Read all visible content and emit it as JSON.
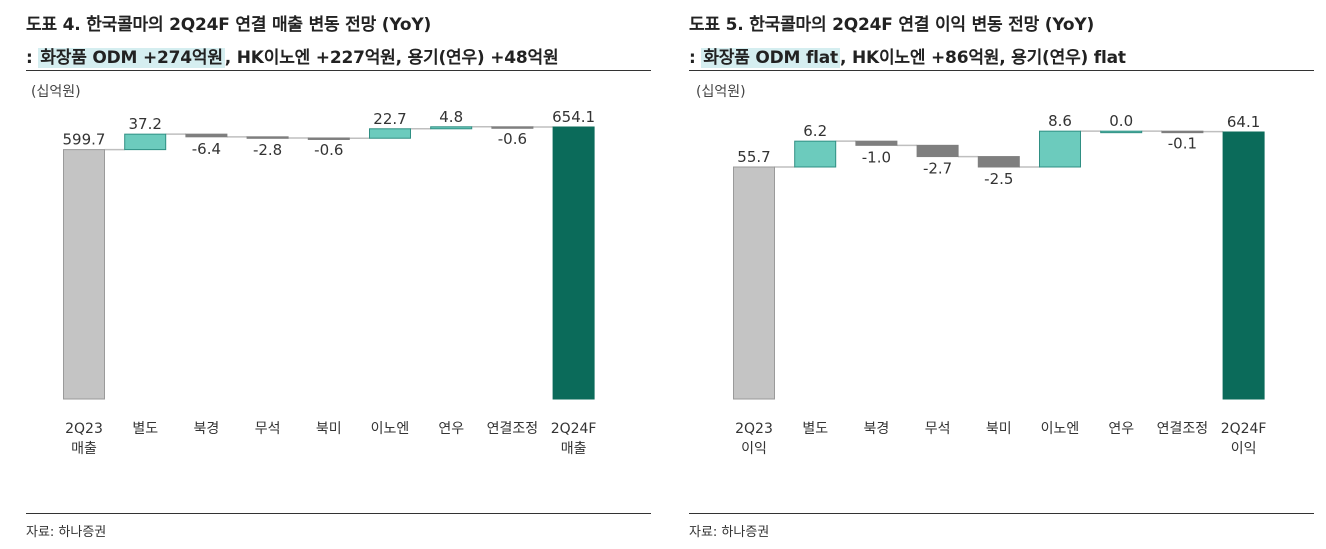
{
  "panels": [
    {
      "title_line1": "도표 4. 한국콜마의 2Q24F 연결 매출 변동 전망 (YoY)",
      "title_prefix": ": ",
      "title_highlight": "화장품 ODM +274억원",
      "title_rest": ", HK이노엔 +227억원, 용기(연우) +48억원",
      "unit": "(십억원)",
      "source": "자료: 하나증권"
    },
    {
      "title_line1": "도표 5. 한국콜마의 2Q24F 연결 이익 변동 전망 (YoY)",
      "title_prefix": ": ",
      "title_highlight": "화장품 ODM flat",
      "title_rest": ", HK이노엔 +86억원, 용기(연우) flat",
      "unit": "(십억원)",
      "source": "자료: 하나증권"
    }
  ],
  "colors": {
    "base": "#c4c4c4",
    "base_border": "#9a9a9a",
    "increase": "#6ccbbd",
    "increase_border": "#2f8f83",
    "decrease": "#7f7f7f",
    "final": "#0b6b5a",
    "connector": "#bfbfbf",
    "highlight": "#d5eef0"
  },
  "chart_data": [
    {
      "type": "bar",
      "subtype": "waterfall",
      "categories": [
        [
          "2Q23",
          "매출"
        ],
        [
          "별도"
        ],
        [
          "북경"
        ],
        [
          "무석"
        ],
        [
          "북미"
        ],
        [
          "이노엔"
        ],
        [
          "연우"
        ],
        [
          "연결조정"
        ],
        [
          "2Q24F",
          "매출"
        ]
      ],
      "kinds": [
        "base",
        "delta",
        "delta",
        "delta",
        "delta",
        "delta",
        "delta",
        "delta",
        "total"
      ],
      "values": [
        599.7,
        37.2,
        -6.4,
        -2.8,
        -0.6,
        22.7,
        4.8,
        -0.6,
        654.1
      ],
      "labels": [
        "599.7",
        "37.2",
        "-6.4",
        "-2.8",
        "-0.6",
        "22.7",
        "4.8",
        "-0.6",
        "654.1"
      ],
      "ylim": [
        0,
        654.1
      ],
      "grid": false,
      "legend": "none"
    },
    {
      "type": "bar",
      "subtype": "waterfall",
      "categories": [
        [
          "2Q23",
          "이익"
        ],
        [
          "별도"
        ],
        [
          "북경"
        ],
        [
          "무석"
        ],
        [
          "북미"
        ],
        [
          "이노엔"
        ],
        [
          "연우"
        ],
        [
          "연결조정"
        ],
        [
          "2Q24F",
          "이익"
        ]
      ],
      "kinds": [
        "base",
        "delta",
        "delta",
        "delta",
        "delta",
        "delta",
        "delta",
        "delta",
        "total"
      ],
      "values": [
        55.7,
        6.2,
        -1.0,
        -2.7,
        -2.5,
        8.6,
        0.0,
        -0.1,
        64.1
      ],
      "labels": [
        "55.7",
        "6.2",
        "-1.0",
        "-2.7",
        "-2.5",
        "8.6",
        "0.0",
        "-0.1",
        "64.1"
      ],
      "ylim": [
        0,
        64.1
      ],
      "grid": false,
      "legend": "none"
    }
  ]
}
